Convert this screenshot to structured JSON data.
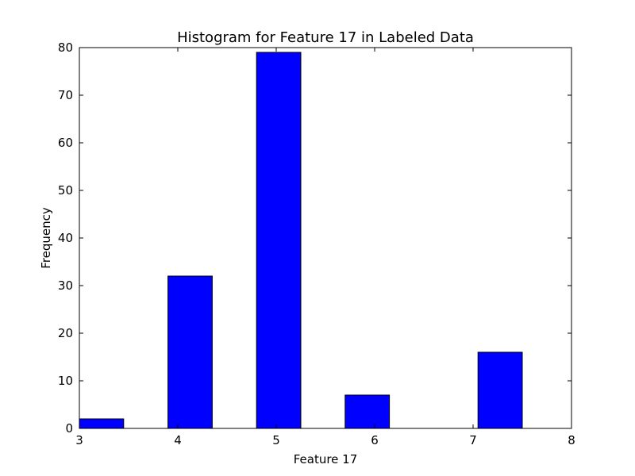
{
  "chart_data": {
    "type": "bar",
    "title": "Histogram for Feature 17 in Labeled Data",
    "xlabel": "Feature 17",
    "ylabel": "Frequency",
    "xlim": [
      3,
      8
    ],
    "ylim": [
      0,
      80
    ],
    "x_ticks": [
      3,
      4,
      5,
      6,
      7,
      8
    ],
    "y_ticks": [
      0,
      10,
      20,
      30,
      40,
      50,
      60,
      70,
      80
    ],
    "bins": [
      {
        "x_start": 3.0,
        "x_end": 3.45,
        "value": 2
      },
      {
        "x_start": 3.9,
        "x_end": 4.35,
        "value": 32
      },
      {
        "x_start": 4.8,
        "x_end": 5.25,
        "value": 79
      },
      {
        "x_start": 5.7,
        "x_end": 6.15,
        "value": 7
      },
      {
        "x_start": 6.6,
        "x_end": 7.05,
        "value": 0
      },
      {
        "x_start": 7.05,
        "x_end": 7.5,
        "value": 16
      }
    ],
    "bar_color": "#0000ff",
    "edge_color": "#000000",
    "grid": false,
    "legend": "none"
  }
}
